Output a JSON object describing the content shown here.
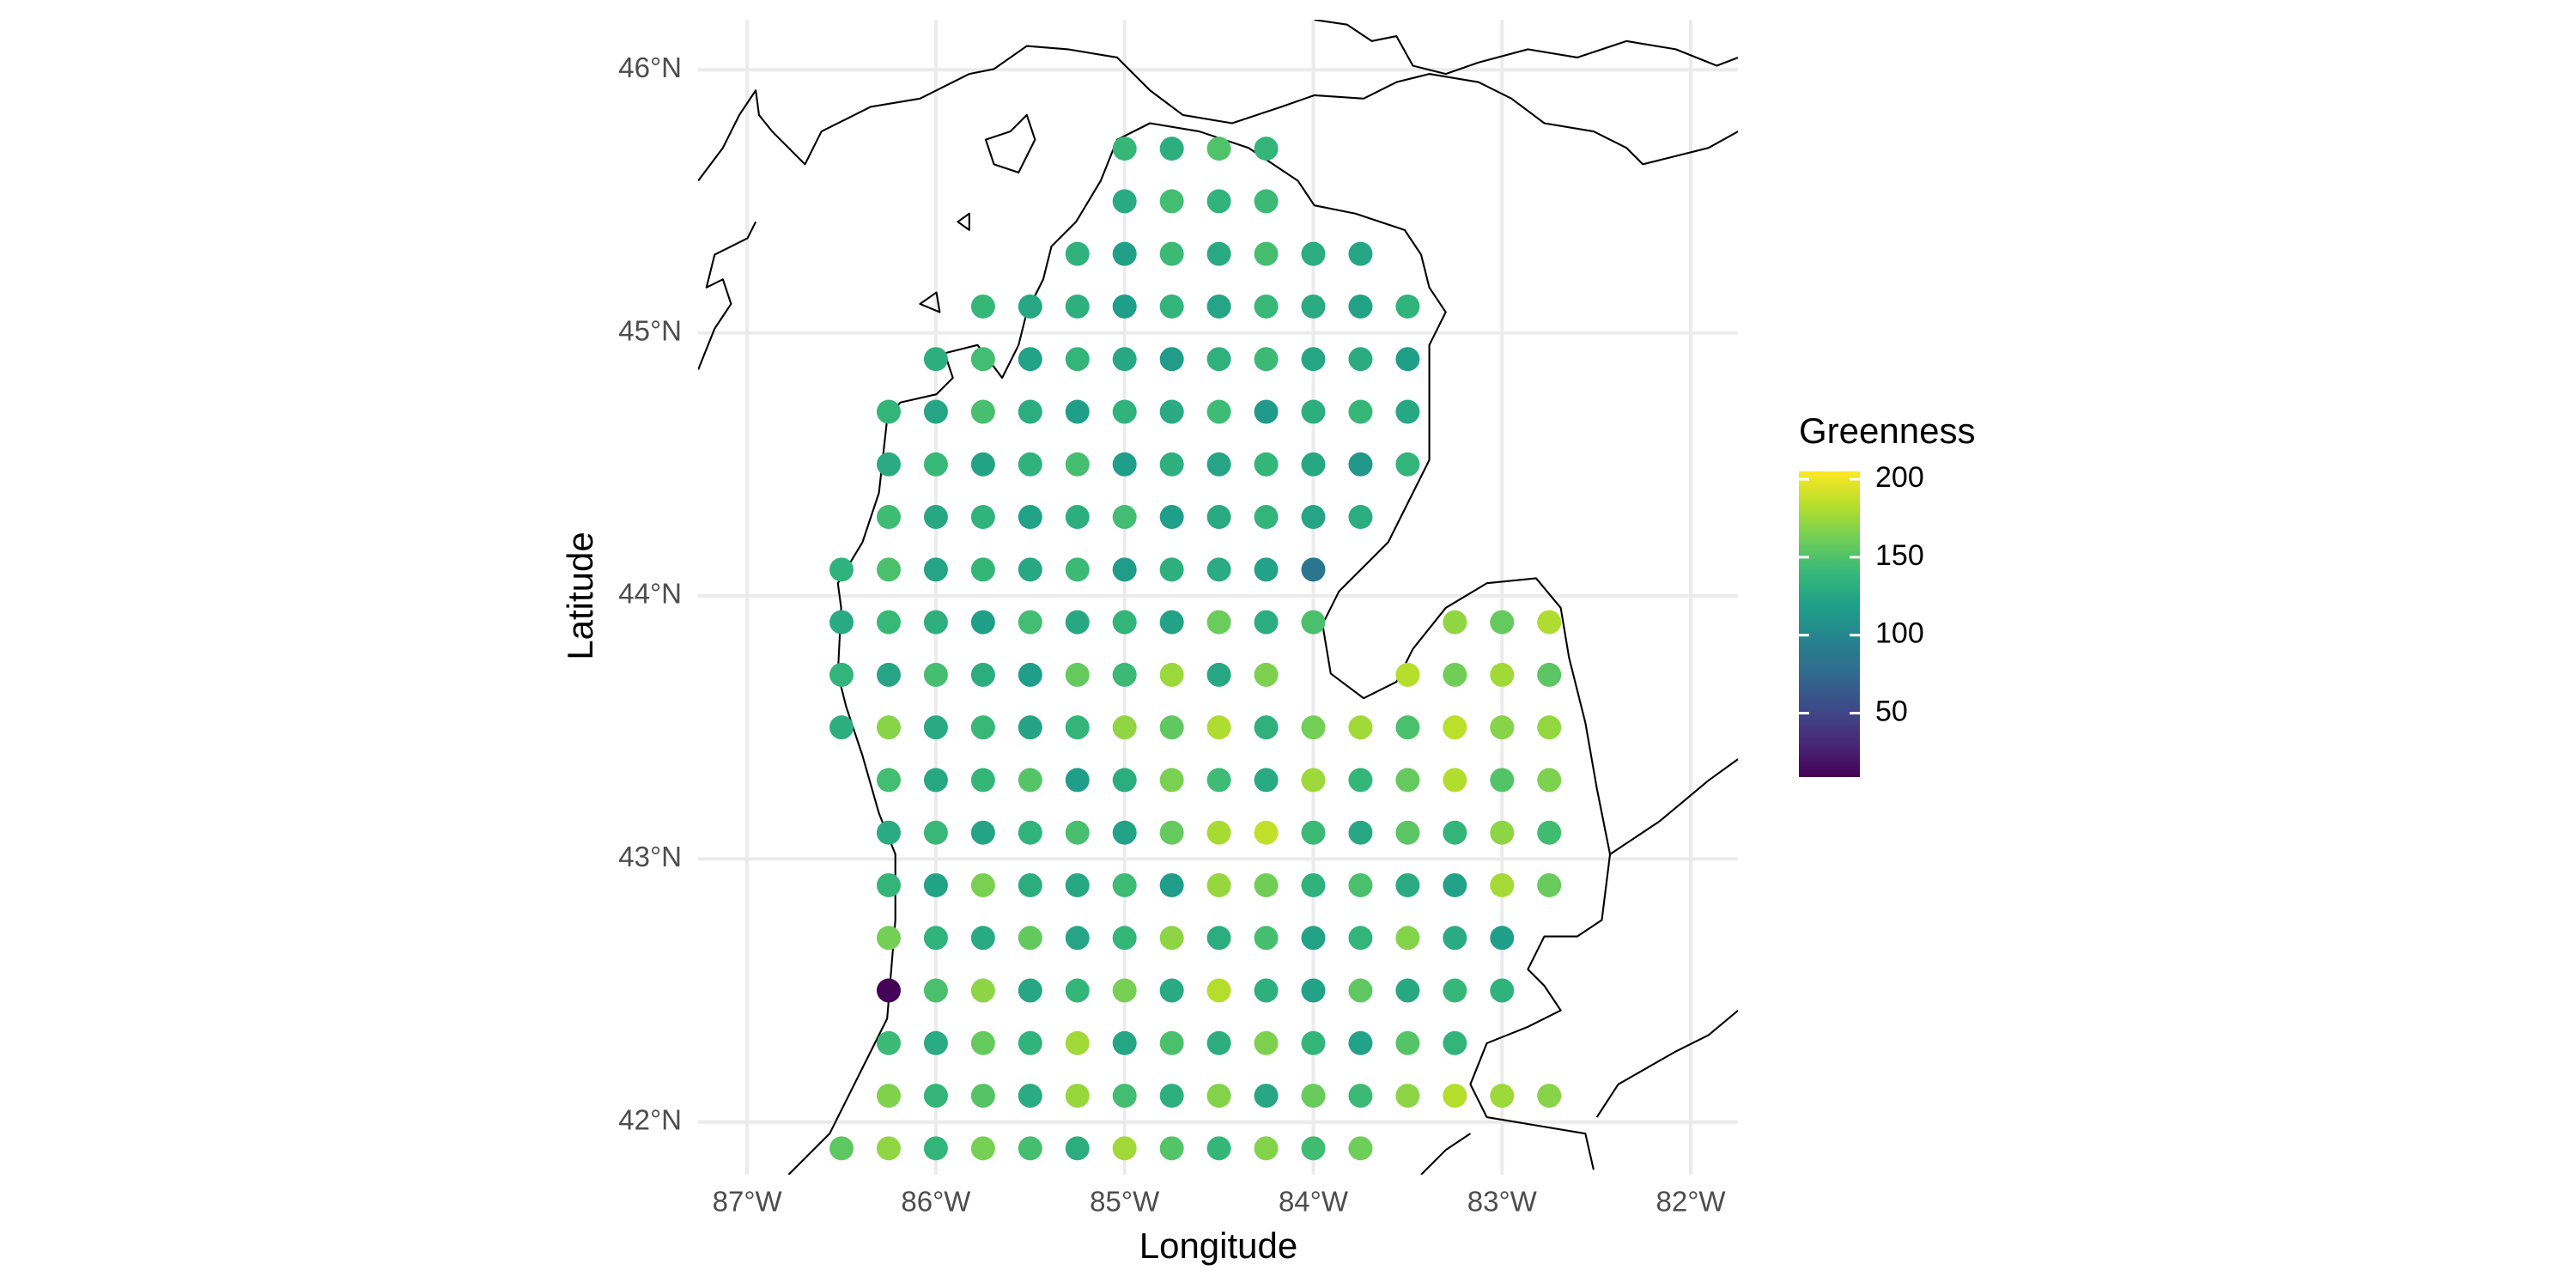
{
  "chart_data": {
    "type": "map",
    "xlabel": "Longitude",
    "ylabel": "Latitude",
    "legend_title": "Greenness",
    "colormap": "viridis",
    "clim": [
      9,
      205
    ],
    "cticks": [
      50,
      100,
      150,
      200
    ],
    "xlim": [
      -87.26,
      -81.75
    ],
    "ylim": [
      41.8,
      46.19
    ],
    "xticks": [
      {
        "value": -87,
        "label": "87°W"
      },
      {
        "value": -86,
        "label": "86°W"
      },
      {
        "value": -85,
        "label": "85°W"
      },
      {
        "value": -84,
        "label": "84°W"
      },
      {
        "value": -83,
        "label": "83°W"
      },
      {
        "value": -82,
        "label": "82°W"
      }
    ],
    "yticks": [
      {
        "value": 42,
        "label": "42°N"
      },
      {
        "value": 43,
        "label": "43°N"
      },
      {
        "value": 44,
        "label": "44°N"
      },
      {
        "value": 45,
        "label": "45°N"
      },
      {
        "value": 46,
        "label": "46°N"
      }
    ],
    "grid": true,
    "rows": [
      {
        "lat": 45.7,
        "lon": [
          -85,
          -84.75,
          -84.5,
          -84.25
        ],
        "values": [
          140,
          132,
          150,
          138
        ]
      },
      {
        "lat": 45.5,
        "lon": [
          -85,
          -84.75,
          -84.5,
          -84.25
        ],
        "values": [
          128,
          145,
          136,
          142
        ]
      },
      {
        "lat": 45.3,
        "lon": [
          -85.25,
          -85,
          -84.75,
          -84.5,
          -84.25,
          -84,
          -83.75
        ],
        "values": [
          135,
          120,
          142,
          128,
          146,
          131,
          125
        ]
      },
      {
        "lat": 45.1,
        "lon": [
          -85.75,
          -85.5,
          -85.25,
          -85,
          -84.75,
          -84.5,
          -84.25,
          -84,
          -83.75,
          -83.5
        ],
        "values": [
          140,
          126,
          133,
          118,
          137,
          124,
          141,
          129,
          122,
          136
        ]
      },
      {
        "lat": 44.9,
        "lon": [
          -86,
          -85.75,
          -85.5,
          -85.25,
          -85,
          -84.75,
          -84.5,
          -84.25,
          -84,
          -83.75,
          -83.5
        ],
        "values": [
          132,
          145,
          121,
          138,
          127,
          116,
          134,
          142,
          125,
          130,
          119
        ]
      },
      {
        "lat": 44.7,
        "lon": [
          -86.25,
          -86,
          -85.75,
          -85.5,
          -85.25,
          -85,
          -84.75,
          -84.5,
          -84.25,
          -84,
          -83.75,
          -83.5
        ],
        "values": [
          138,
          124,
          147,
          131,
          119,
          136,
          128,
          143,
          115,
          132,
          140,
          126
        ]
      },
      {
        "lat": 44.5,
        "lon": [
          -86.25,
          -86,
          -85.75,
          -85.5,
          -85.25,
          -85,
          -84.75,
          -84.5,
          -84.25,
          -84,
          -83.75,
          -83.5
        ],
        "values": [
          129,
          141,
          122,
          135,
          146,
          118,
          133,
          124,
          139,
          127,
          113,
          137
        ]
      },
      {
        "lat": 44.3,
        "lon": [
          -86.25,
          -86,
          -85.75,
          -85.5,
          -85.25,
          -85,
          -84.75,
          -84.5,
          -84.25,
          -84,
          -83.75
        ],
        "values": [
          143,
          127,
          136,
          121,
          132,
          145,
          119,
          128,
          137,
          124,
          131
        ]
      },
      {
        "lat": 44.1,
        "lon": [
          -86.5,
          -86.25,
          -86,
          -85.75,
          -85.5,
          -85.25,
          -85,
          -84.75,
          -84.5,
          -84.25,
          -84
        ],
        "values": [
          135,
          148,
          124,
          139,
          126,
          142,
          117,
          133,
          129,
          121,
          85
        ]
      },
      {
        "lat": 43.9,
        "lon": [
          -86.5,
          -86.25,
          -86,
          -85.75,
          -85.5,
          -85.25,
          -85,
          -84.75,
          -84.5,
          -84.25,
          -84,
          -83.25,
          -83,
          -82.75
        ],
        "values": [
          128,
          141,
          133,
          119,
          145,
          127,
          138,
          122,
          160,
          131,
          148,
          172,
          158,
          181
        ]
      },
      {
        "lat": 43.7,
        "lon": [
          -86.5,
          -86.25,
          -86,
          -85.75,
          -85.5,
          -85.25,
          -85,
          -84.75,
          -84.5,
          -84.25,
          -83.5,
          -83.25,
          -83,
          -82.75
        ],
        "values": [
          137,
          124,
          146,
          131,
          118,
          158,
          142,
          175,
          127,
          166,
          183,
          162,
          177,
          154
        ]
      },
      {
        "lat": 43.5,
        "lon": [
          -86.5,
          -86.25,
          -86,
          -85.75,
          -85.5,
          -85.25,
          -85,
          -84.75,
          -84.5,
          -84.25,
          -84,
          -83.75,
          -83.5,
          -83.25,
          -83,
          -82.75
        ],
        "values": [
          132,
          169,
          128,
          141,
          123,
          138,
          172,
          156,
          181,
          134,
          163,
          177,
          148,
          185,
          169,
          173
        ]
      },
      {
        "lat": 43.3,
        "lon": [
          -86.25,
          -86,
          -85.75,
          -85.5,
          -85.25,
          -85,
          -84.75,
          -84.5,
          -84.25,
          -84,
          -83.75,
          -83.5,
          -83.25,
          -83,
          -82.75
        ],
        "values": [
          145,
          127,
          139,
          152,
          118,
          131,
          165,
          143,
          128,
          176,
          139,
          158,
          182,
          151,
          166
        ]
      },
      {
        "lat": 43.1,
        "lon": [
          -86.25,
          -86,
          -85.75,
          -85.5,
          -85.25,
          -85,
          -84.75,
          -84.5,
          -84.25,
          -84,
          -83.75,
          -83.5,
          -83.25,
          -83,
          -82.75
        ],
        "values": [
          129,
          141,
          123,
          136,
          147,
          121,
          158,
          179,
          187,
          142,
          126,
          154,
          138,
          171,
          144
        ]
      },
      {
        "lat": 42.9,
        "lon": [
          -86.25,
          -86,
          -85.75,
          -85.5,
          -85.25,
          -85,
          -84.75,
          -84.5,
          -84.25,
          -84,
          -83.75,
          -83.5,
          -83.25,
          -83,
          -82.75
        ],
        "values": [
          138,
          122,
          165,
          131,
          127,
          143,
          118,
          174,
          162,
          135,
          148,
          129,
          121,
          178,
          159
        ]
      },
      {
        "lat": 42.7,
        "lon": [
          -86.25,
          -86,
          -85.75,
          -85.5,
          -85.25,
          -85,
          -84.75,
          -84.5,
          -84.25,
          -84,
          -83.75,
          -83.5,
          -83.25,
          -83
        ],
        "values": [
          163,
          136,
          128,
          157,
          124,
          139,
          171,
          131,
          146,
          122,
          137,
          168,
          129,
          118
        ]
      },
      {
        "lat": 42.5,
        "lon": [
          -86.25,
          -86,
          -85.75,
          -85.5,
          -85.25,
          -85,
          -84.75,
          -84.5,
          -84.25,
          -84,
          -83.75,
          -83.5,
          -83.25,
          -83
        ],
        "values": [
          10,
          148,
          171,
          125,
          139,
          164,
          128,
          183,
          133,
          121,
          156,
          127,
          140,
          135
        ]
      },
      {
        "lat": 42.3,
        "lon": [
          -86.25,
          -86,
          -85.75,
          -85.5,
          -85.25,
          -85,
          -84.75,
          -84.5,
          -84.25,
          -84,
          -83.75,
          -83.5,
          -83.25
        ],
        "values": [
          142,
          129,
          158,
          136,
          177,
          124,
          148,
          131,
          166,
          139,
          121,
          152,
          137
        ]
      },
      {
        "lat": 42.1,
        "lon": [
          -86.25,
          -86,
          -85.75,
          -85.5,
          -85.25,
          -85,
          -84.75,
          -84.5,
          -84.25,
          -84,
          -83.75,
          -83.5,
          -83.25,
          -83,
          -82.75
        ],
        "values": [
          167,
          138,
          152,
          129,
          174,
          145,
          133,
          168,
          126,
          159,
          142,
          171,
          183,
          176,
          169
        ]
      },
      {
        "lat": 41.9,
        "lon": [
          -86.5,
          -86.25,
          -86,
          -85.75,
          -85.5,
          -85.25,
          -85,
          -84.75,
          -84.5,
          -84.25,
          -84,
          -83.75
        ],
        "values": [
          155,
          172,
          138,
          164,
          146,
          131,
          177,
          152,
          139,
          168,
          144,
          161
        ]
      }
    ]
  }
}
